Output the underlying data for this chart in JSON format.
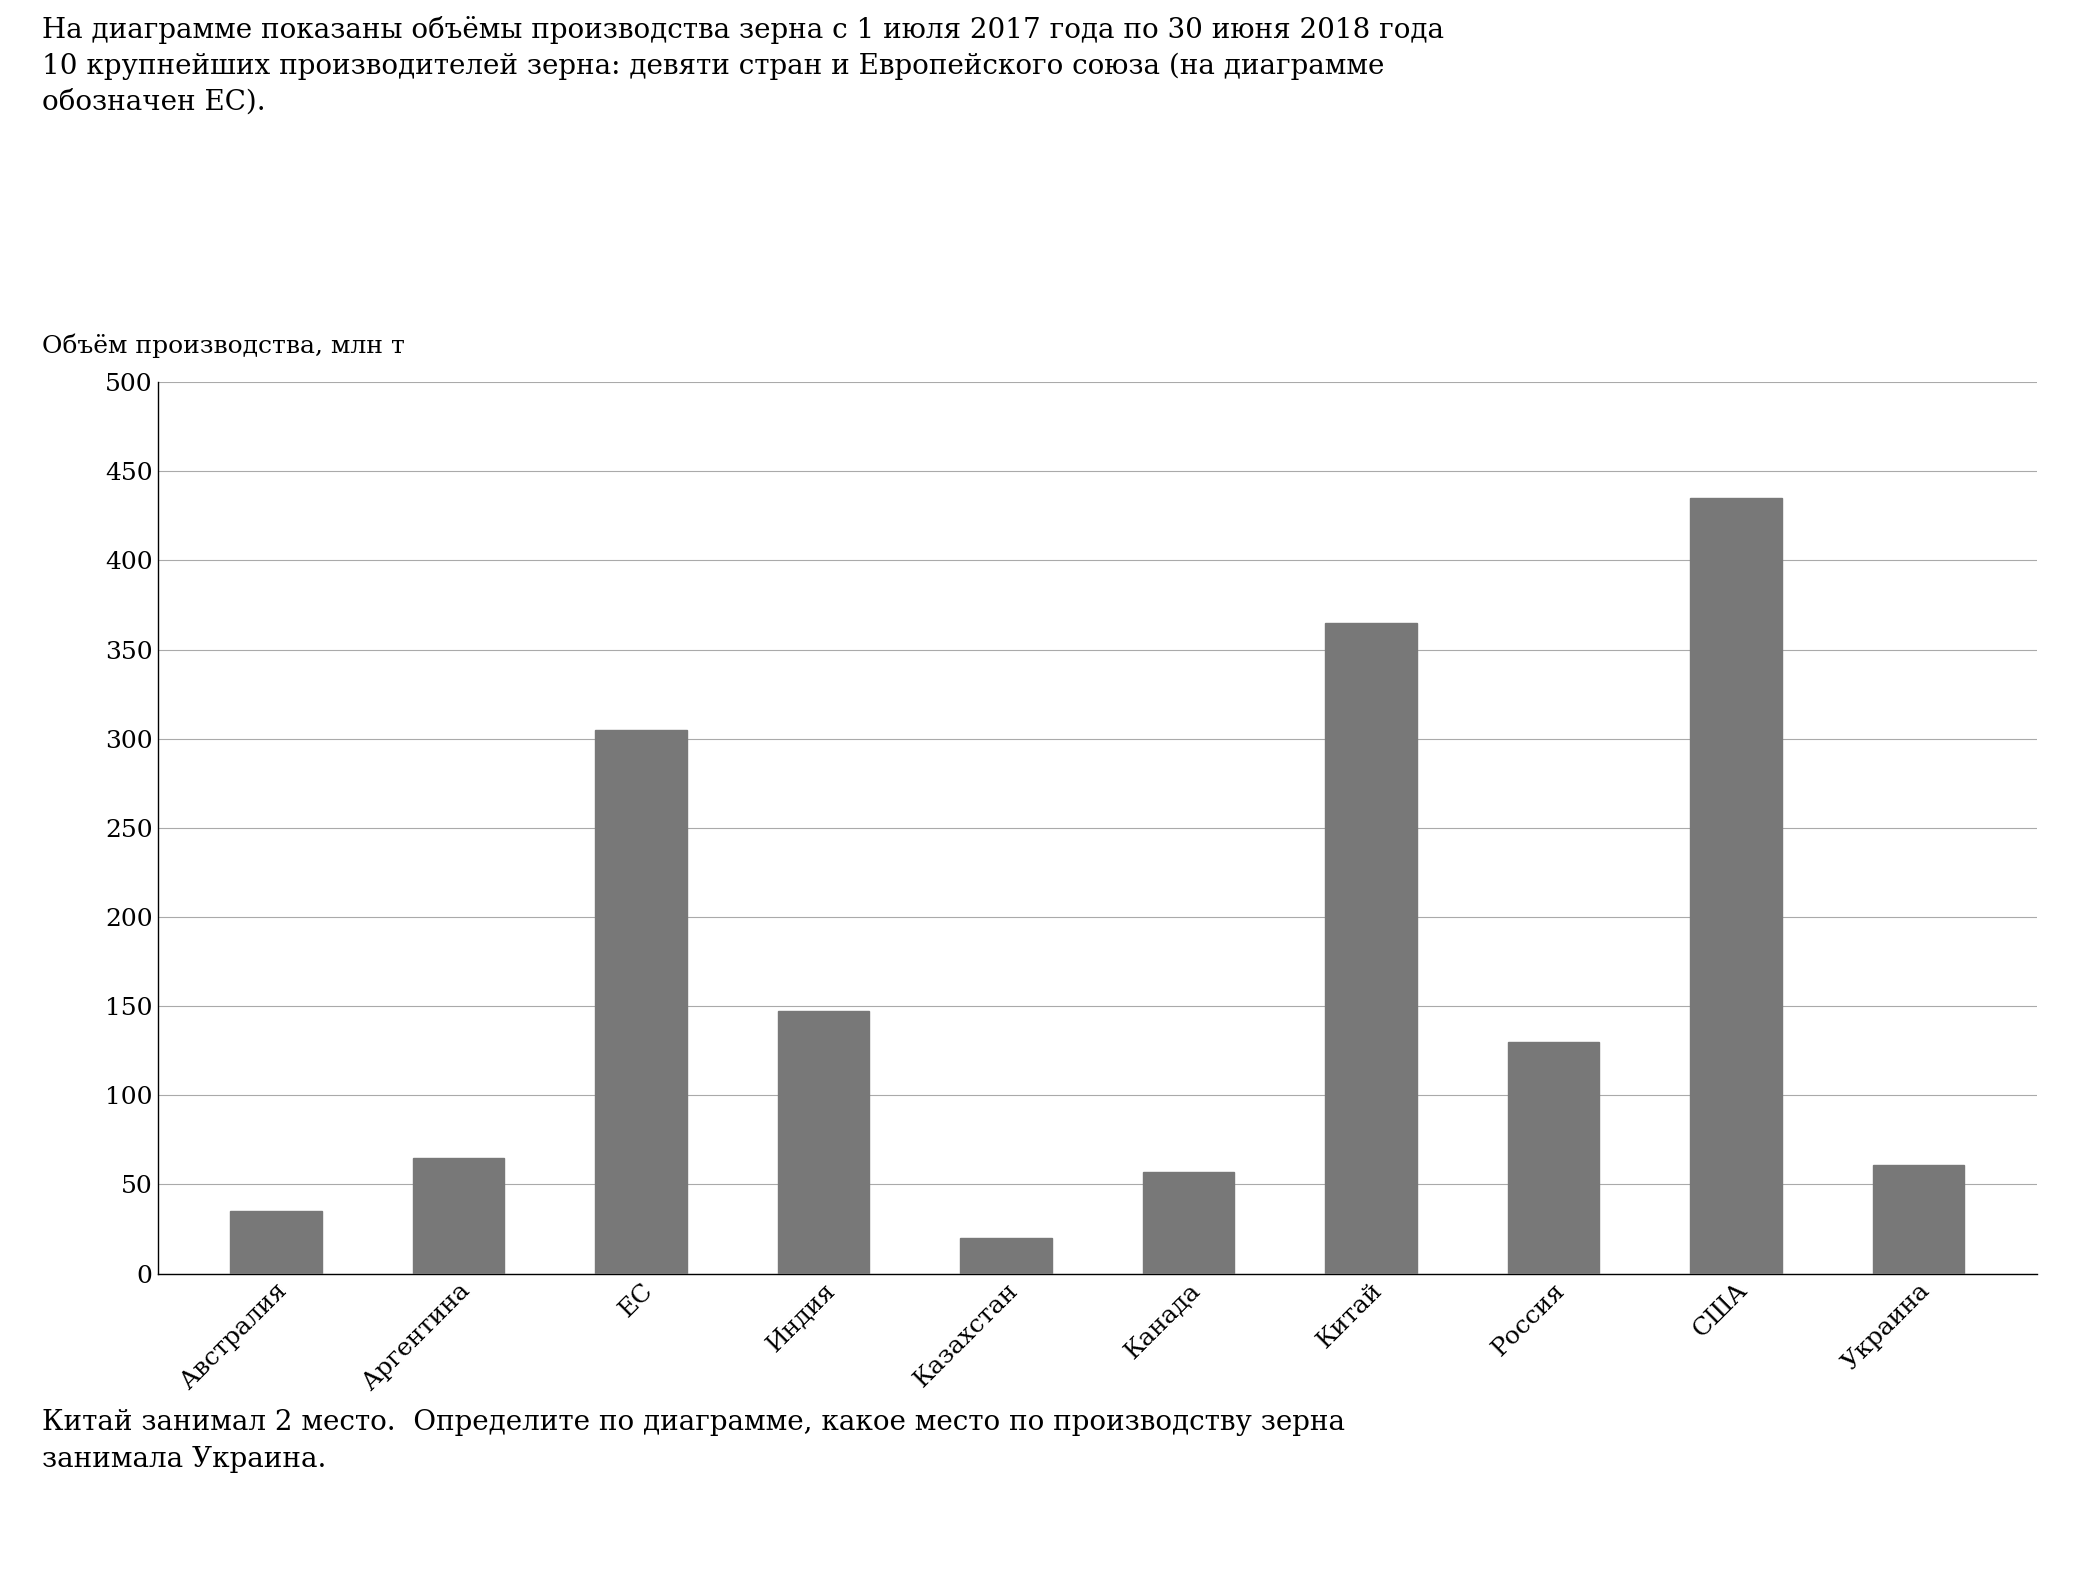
{
  "categories": [
    "Австралия",
    "Аргентина",
    "ЕС",
    "Индия",
    "Казахстан",
    "Канада",
    "Китай",
    "Россия",
    "США",
    "Украина"
  ],
  "values": [
    35,
    65,
    305,
    147,
    20,
    57,
    365,
    130,
    435,
    61
  ],
  "bar_color": "#787878",
  "ylabel": "Объём производства, млн т",
  "ylim": [
    0,
    500
  ],
  "yticks": [
    0,
    50,
    100,
    150,
    200,
    250,
    300,
    350,
    400,
    450,
    500
  ],
  "title_line1": "На диаграмме показаны объёмы производства зерна с 1 июля 2017 года по 30 июня 2018 года",
  "title_line2": "10 крупнейших производителей зерна: девяти стран и Европейского союза (на диаграмме",
  "title_line3": "обозначен ЕС).",
  "footer_line1": "Китай занимал 2 место.  Определите по диаграмме, какое место по производству зерна",
  "footer_line2": "занимала Украина.",
  "bg_color": "#ffffff",
  "grid_color": "#aaaaaa",
  "font_size_tick": 18,
  "font_size_ylabel": 18,
  "font_size_title": 20,
  "font_size_footer": 20
}
